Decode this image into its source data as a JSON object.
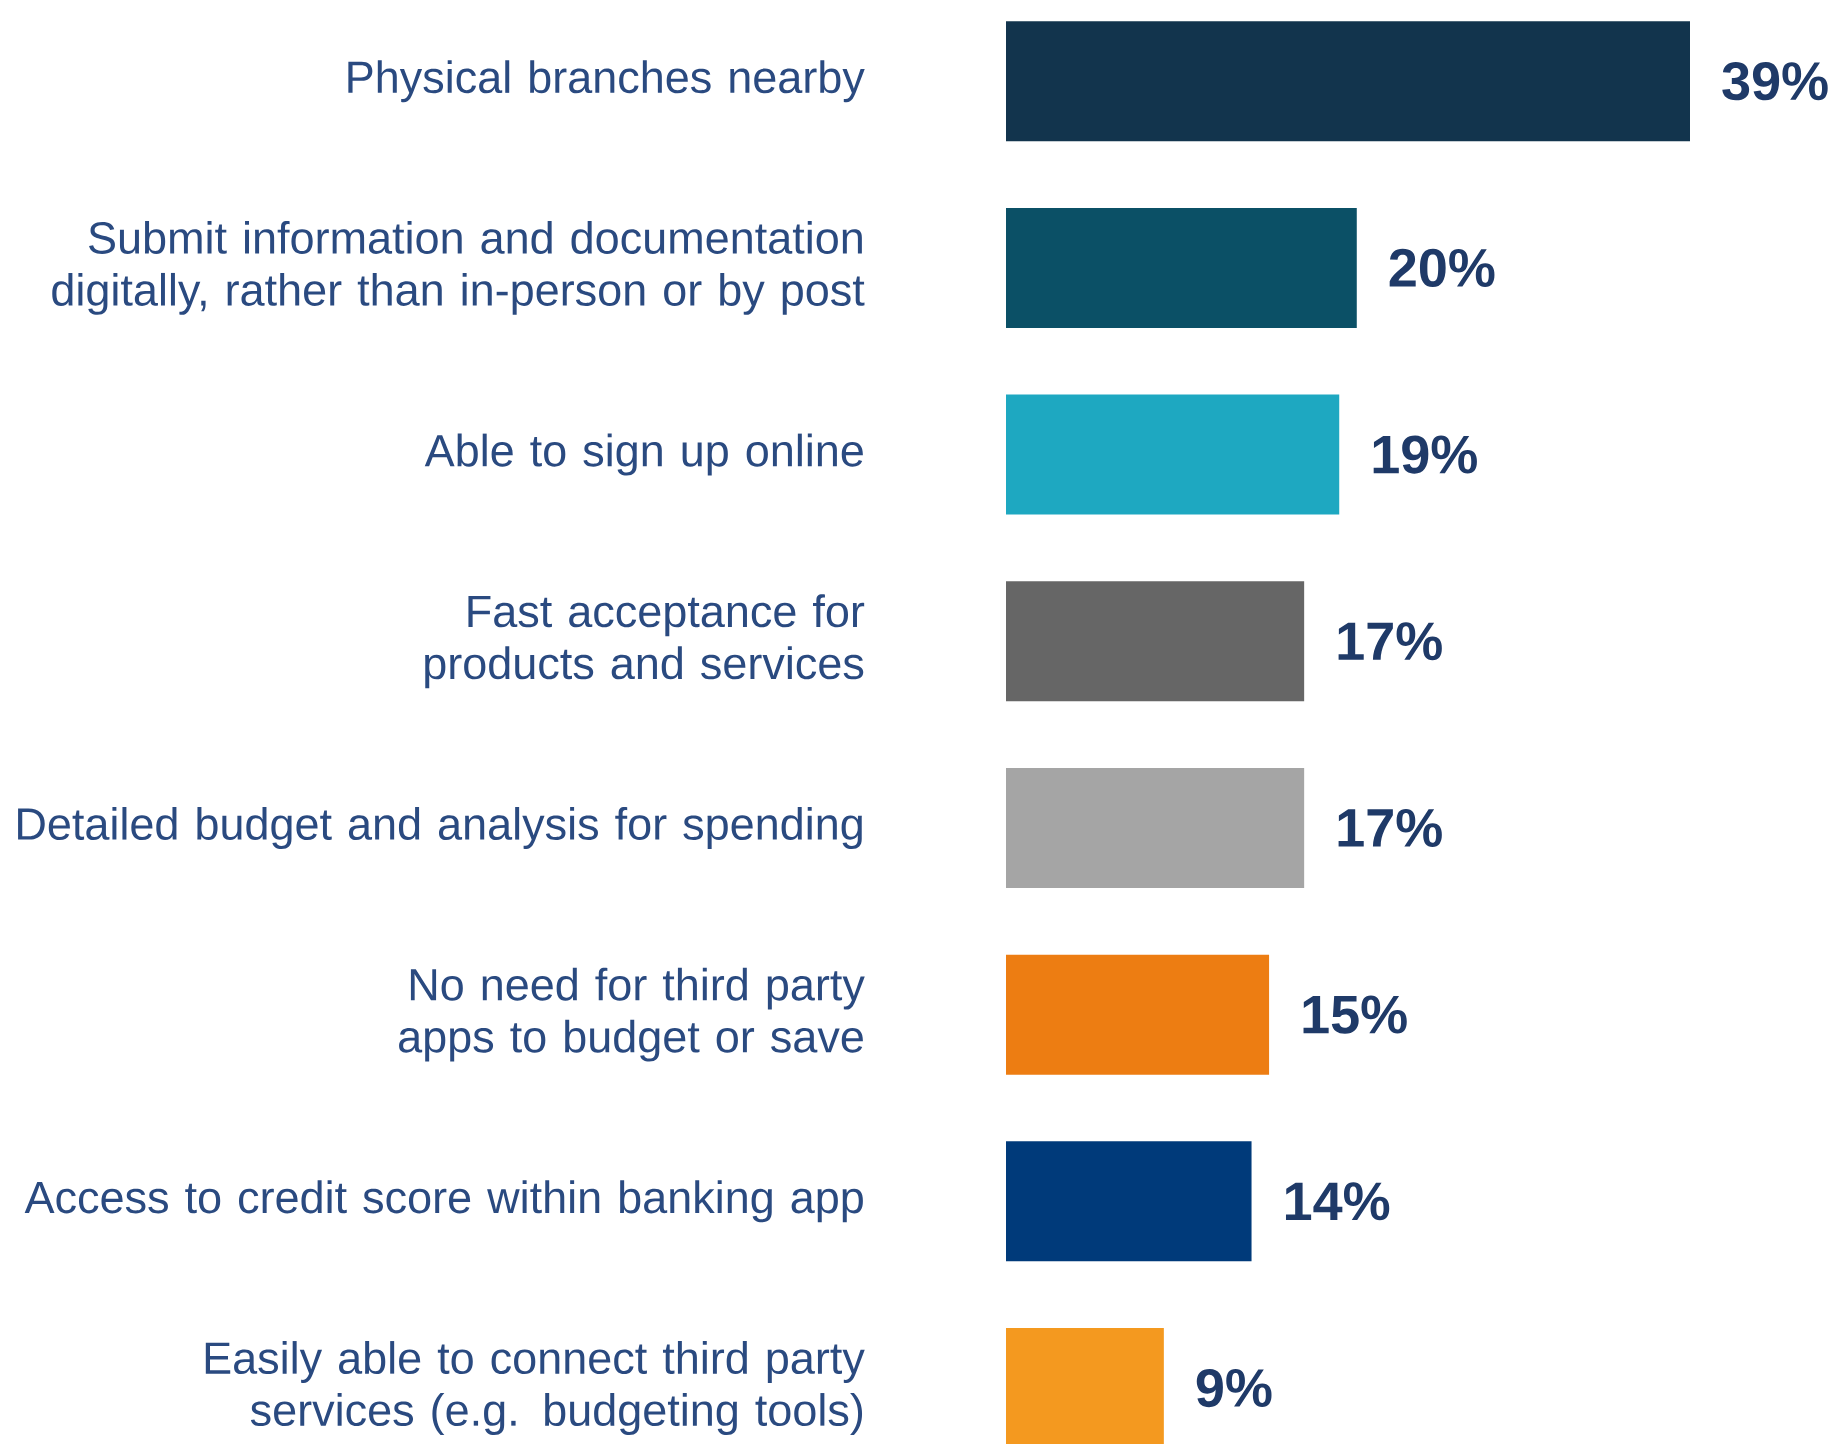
{
  "chart_data": {
    "type": "bar",
    "orientation": "horizontal",
    "categories": [
      "Physical branches nearby",
      "Submit information and documentation digitally, rather than in-person or by post",
      "Able to sign up online",
      "Fast acceptance for products and services",
      "Detailed budget and analysis for spending",
      "No need for third party apps to budget or save",
      "Access to credit score within banking app",
      "Easily able to connect third party services (e.g. budgeting tools)"
    ],
    "values": [
      39,
      20,
      19,
      17,
      17,
      15,
      14,
      9
    ],
    "colors": [
      "#12344d",
      "#0b5066",
      "#1ea8c1",
      "#666666",
      "#a5a5a5",
      "#ed7d12",
      "#003a7a",
      "#f4991f"
    ],
    "value_labels": [
      "39%",
      "20%",
      "19%",
      "17%",
      "17%",
      "15%",
      "14%",
      "9%"
    ]
  }
}
